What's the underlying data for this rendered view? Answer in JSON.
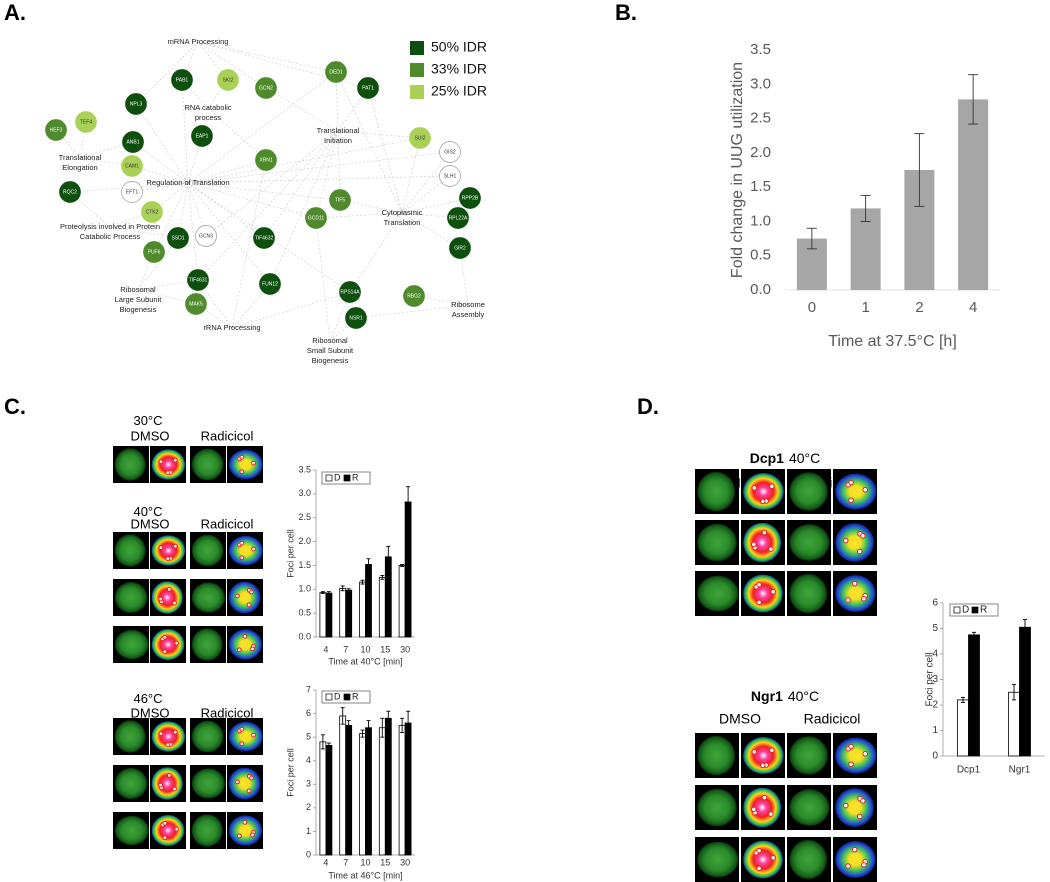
{
  "panel_labels": [
    "A.",
    "B.",
    "C.",
    "D."
  ],
  "network": {
    "legend": [
      {
        "label": "50% IDR",
        "color": "#0d4f0d"
      },
      {
        "label": "33% IDR",
        "color": "#4f8a2d"
      },
      {
        "label": "25% IDR",
        "color": "#a9d158"
      }
    ],
    "processes": [
      [
        "mRNA Processing"
      ],
      [
        "RNA catabolic",
        "process"
      ],
      [
        "Translational",
        "Initiation"
      ],
      [
        "Translational",
        "Elongation"
      ],
      [
        "Regulation of Translation"
      ],
      [
        "Cytoplasmic",
        "Translation"
      ],
      [
        "Proteolysis involved in Protein",
        "Catabolic Process"
      ],
      [
        "Ribosomal",
        "Large Subunit",
        "Biogenesis"
      ],
      [
        "rRNA Processing"
      ],
      [
        "Ribosome",
        "Assembly"
      ],
      [
        "Ribosomal",
        "Small Subunit",
        "Biogenesis"
      ]
    ],
    "nodes": [
      {
        "label": "PAB1",
        "color": "#0d4f0d"
      },
      {
        "label": "SKI2",
        "color": "#a9d158"
      },
      {
        "label": "GCN2",
        "color": "#4f8a2d"
      },
      {
        "label": "DED1",
        "color": "#4f8a2d"
      },
      {
        "label": "PAT1",
        "color": "#0d4f0d"
      },
      {
        "label": "NPL3",
        "color": "#0d4f0d"
      },
      {
        "label": "EAP1",
        "color": "#0d4f0d"
      },
      {
        "label": "ANB1",
        "color": "#0d4f0d"
      },
      {
        "label": "HEF3",
        "color": "#4f8a2d"
      },
      {
        "label": "TEF4",
        "color": "#a9d158"
      },
      {
        "label": "CAM1",
        "color": "#a9d158"
      },
      {
        "label": "XRN1",
        "color": "#4f8a2d"
      },
      {
        "label": "SUI2",
        "color": "#a9d158"
      },
      {
        "label": "GIS2",
        "color": "#ffffff"
      },
      {
        "label": "SLH1",
        "color": "#ffffff"
      },
      {
        "label": "EFT1",
        "color": "#ffffff"
      },
      {
        "label": "RQC2",
        "color": "#0d4f0d"
      },
      {
        "label": "RPP2B",
        "color": "#0d4f0d"
      },
      {
        "label": "CTK2",
        "color": "#a9d158"
      },
      {
        "label": "TIF5",
        "color": "#4f8a2d"
      },
      {
        "label": "GCD11",
        "color": "#4f8a2d"
      },
      {
        "label": "RPL22A",
        "color": "#0d4f0d"
      },
      {
        "label": "SSD1",
        "color": "#0d4f0d"
      },
      {
        "label": "PUF6",
        "color": "#4f8a2d"
      },
      {
        "label": "GCN3",
        "color": "#ffffff"
      },
      {
        "label": "TIF4632",
        "color": "#0d4f0d"
      },
      {
        "label": "GIR2",
        "color": "#0d4f0d"
      },
      {
        "label": "TIF4631",
        "color": "#0d4f0d"
      },
      {
        "label": "RPS14A",
        "color": "#0d4f0d"
      },
      {
        "label": "RBG2",
        "color": "#4f8a2d"
      },
      {
        "label": "FUN12",
        "color": "#0d4f0d"
      },
      {
        "label": "MAK5",
        "color": "#4f8a2d"
      },
      {
        "label": "NSR1",
        "color": "#0d4f0d"
      }
    ]
  },
  "micrographs": {
    "columns": [
      "DMSO",
      "Radicicol"
    ],
    "groups": [
      {
        "title": "30°C"
      },
      {
        "title": "40°C"
      },
      {
        "title": "46°C"
      },
      {
        "gene": "Dcp1",
        "title": "40°C"
      },
      {
        "gene": "Ngr1",
        "title": "40°C"
      }
    ]
  },
  "chart_data": [
    {
      "type": "bar",
      "ylabel": "Fold change in UUG utilization",
      "xlabel": "Time at 37.5°C [h]",
      "categories": [
        "0",
        "1",
        "2",
        "4"
      ],
      "values": [
        0.75,
        1.19,
        1.75,
        2.78
      ],
      "errors": [
        0.15,
        0.19,
        0.53,
        0.36
      ],
      "color": "#a6a6a6",
      "ylim": [
        0,
        3.5
      ],
      "yticks": [
        {
          "value": 0,
          "label": "0.0"
        },
        0.5,
        {
          "value": 1,
          "label": "1.0"
        },
        1.5,
        {
          "value": 2,
          "label": "2.0"
        },
        2.5,
        {
          "value": 3,
          "label": "3.0"
        },
        3.5
      ]
    },
    {
      "type": "bar",
      "ylabel": "Foci per cell",
      "xlabel": "Time at 40°C [min]",
      "categories": [
        "4",
        "7",
        "10",
        "15",
        "30"
      ],
      "series": [
        {
          "name": "D",
          "color": "#ffffff",
          "values": [
            0.93,
            1.02,
            1.15,
            1.25,
            1.5
          ],
          "errors": [
            0.02,
            0.05,
            0.04,
            0.04,
            0.02
          ]
        },
        {
          "name": "R",
          "color": "#000000",
          "values": [
            0.92,
            0.98,
            1.52,
            1.68,
            2.83
          ],
          "errors": [
            0.03,
            0.03,
            0.12,
            0.22,
            0.32
          ]
        }
      ],
      "ylim": [
        0,
        3.5
      ],
      "yticks": [
        {
          "value": 0,
          "label": "0.0"
        },
        0.5,
        {
          "value": 1,
          "label": "1.0"
        },
        1.5,
        {
          "value": 2,
          "label": "2.0"
        },
        2.5,
        {
          "value": 3,
          "label": "3.0"
        },
        3.5
      ]
    },
    {
      "type": "bar",
      "ylabel": "Foci per cell",
      "xlabel": "Time at 46°C [min]",
      "categories": [
        "4",
        "7",
        "10",
        "15",
        "30"
      ],
      "series": [
        {
          "name": "D",
          "color": "#ffffff",
          "values": [
            4.8,
            5.9,
            5.15,
            5.4,
            5.5
          ],
          "errors": [
            0.3,
            0.35,
            0.15,
            0.4,
            0.3
          ]
        },
        {
          "name": "R",
          "color": "#000000",
          "values": [
            4.65,
            5.5,
            5.4,
            5.8,
            5.6
          ],
          "errors": [
            0.1,
            0.2,
            0.3,
            0.3,
            0.5
          ]
        }
      ],
      "ylim": [
        0,
        7
      ],
      "yticks": [
        0,
        1,
        2,
        3,
        4,
        5,
        6,
        7
      ]
    },
    {
      "type": "bar",
      "ylabel": "Foci per cell",
      "categories": [
        "Dcp1",
        "Ngr1"
      ],
      "series": [
        {
          "name": "D",
          "color": "#ffffff",
          "values": [
            2.2,
            2.5
          ],
          "errors": [
            0.1,
            0.3
          ]
        },
        {
          "name": "R",
          "color": "#000000",
          "values": [
            4.75,
            5.05
          ],
          "errors": [
            0.1,
            0.3
          ]
        }
      ],
      "ylim": [
        0,
        6
      ],
      "yticks": [
        0,
        1,
        2,
        3,
        4,
        5,
        6
      ]
    }
  ]
}
